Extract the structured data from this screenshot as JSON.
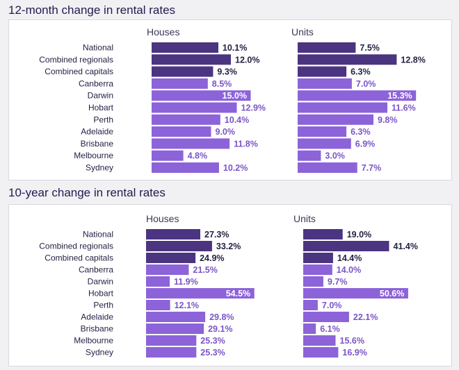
{
  "chart_data": [
    {
      "type": "bar",
      "title": "12-month change in rental rates",
      "categories": [
        "National",
        "Combined regionals",
        "Combined capitals",
        "Canberra",
        "Darwin",
        "Hobart",
        "Perth",
        "Adelaide",
        "Brisbane",
        "Melbourne",
        "Sydney"
      ],
      "series": [
        {
          "name": "Houses",
          "values": [
            10.1,
            12.0,
            9.3,
            8.5,
            15.0,
            12.9,
            10.4,
            9.0,
            11.8,
            4.8,
            10.2
          ]
        },
        {
          "name": "Units",
          "values": [
            7.5,
            12.8,
            6.3,
            7.0,
            15.3,
            11.6,
            9.8,
            6.3,
            6.9,
            3.0,
            7.7
          ]
        }
      ],
      "value_suffix": "%",
      "orientation": "horizontal",
      "xlim": [
        0,
        16
      ]
    },
    {
      "type": "bar",
      "title": "10-year change in rental rates",
      "categories": [
        "National",
        "Combined regionals",
        "Combined capitals",
        "Canberra",
        "Darwin",
        "Hobart",
        "Perth",
        "Adelaide",
        "Brisbane",
        "Melbourne",
        "Sydney"
      ],
      "series": [
        {
          "name": "Houses",
          "values": [
            27.3,
            33.2,
            24.9,
            21.5,
            11.9,
            54.5,
            12.1,
            29.8,
            29.1,
            25.3,
            25.3
          ]
        },
        {
          "name": "Units",
          "values": [
            19.0,
            41.4,
            14.4,
            14.0,
            9.7,
            50.6,
            7.0,
            22.1,
            6.1,
            15.6,
            16.9
          ]
        }
      ],
      "value_suffix": "%",
      "orientation": "horizontal",
      "xlim": [
        0,
        56
      ]
    }
  ],
  "colors": {
    "dark": "#4b3480",
    "light": "#8c63d9",
    "text_light": "#7a55c8",
    "text_dark": "#242243",
    "text_on_bar": "#ffffff"
  }
}
